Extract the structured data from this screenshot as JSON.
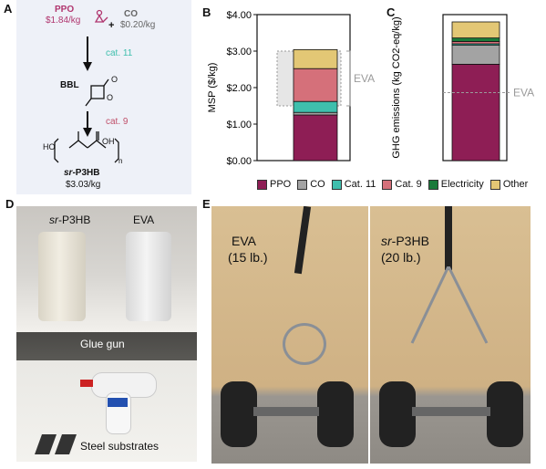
{
  "panels": {
    "a": "A",
    "b": "B",
    "c": "C",
    "d": "D",
    "e": "E"
  },
  "scheme": {
    "ppo_label": "PPO",
    "ppo_price": "$1.84/kg",
    "plus": "+",
    "co_label": "CO",
    "co_price": "$0.20/kg",
    "cat11": "cat. 11",
    "bbl": "BBL",
    "cat9": "cat. 9",
    "product_prefix": "sr",
    "product_suffix": "-P3HB",
    "product_price": "$3.03/kg",
    "oh_left": "HO",
    "oh_right": "OH",
    "subscript_n": "n"
  },
  "colors": {
    "PPO": "#8e1e55",
    "CO": "#a3a3a3",
    "Cat. 11": "#3fbfad",
    "Cat. 9": "#d5707a",
    "Electricity": "#1a7a3a",
    "Other": "#e3c775",
    "ppo_text": "#b0356e",
    "cat11_text": "#3fbfad",
    "cat9_text": "#c0506a",
    "eva_text": "#9a9a9a"
  },
  "chart_data": [
    {
      "type": "bar",
      "panel": "B",
      "ylabel": "MSP ($/kg)",
      "yticks": [
        "$0.00",
        "$1.00",
        "$2.00",
        "$3.00",
        "$4.00"
      ],
      "ylim": [
        0,
        4
      ],
      "stack": [
        {
          "name": "PPO",
          "value": 1.25
        },
        {
          "name": "CO",
          "value": 0.07
        },
        {
          "name": "Cat. 11",
          "value": 0.3
        },
        {
          "name": "Cat. 9",
          "value": 0.9
        },
        {
          "name": "Other",
          "value": 0.52
        }
      ],
      "eva_range": [
        1.5,
        3.0
      ],
      "eva_label": "EVA"
    },
    {
      "type": "bar",
      "panel": "C",
      "ylabel": "GHG emissions (kg CO2-eq/kg)",
      "ylim": [
        0,
        5
      ],
      "stack": [
        {
          "name": "PPO",
          "value": 3.3
        },
        {
          "name": "CO",
          "value": 0.65
        },
        {
          "name": "Cat. 11",
          "value": 0.05
        },
        {
          "name": "Cat. 9",
          "value": 0.08
        },
        {
          "name": "Electricity",
          "value": 0.12
        },
        {
          "name": "Other",
          "value": 0.55
        }
      ],
      "eva_line": 2.33,
      "eva_label": "EVA"
    }
  ],
  "legend": [
    "PPO",
    "CO",
    "Cat. 11",
    "Cat. 9",
    "Electricity",
    "Other"
  ],
  "photo_d": {
    "label_p3hb_prefix": "sr",
    "label_p3hb_suffix": "-P3HB",
    "label_eva": "EVA",
    "glue_gun": "Glue gun",
    "steel": "Steel substrates"
  },
  "photo_e": {
    "left_label": "EVA",
    "left_weight": "(15 lb.)",
    "right_label_prefix": "sr",
    "right_label_suffix": "-P3HB",
    "right_weight": "(20 lb.)"
  }
}
